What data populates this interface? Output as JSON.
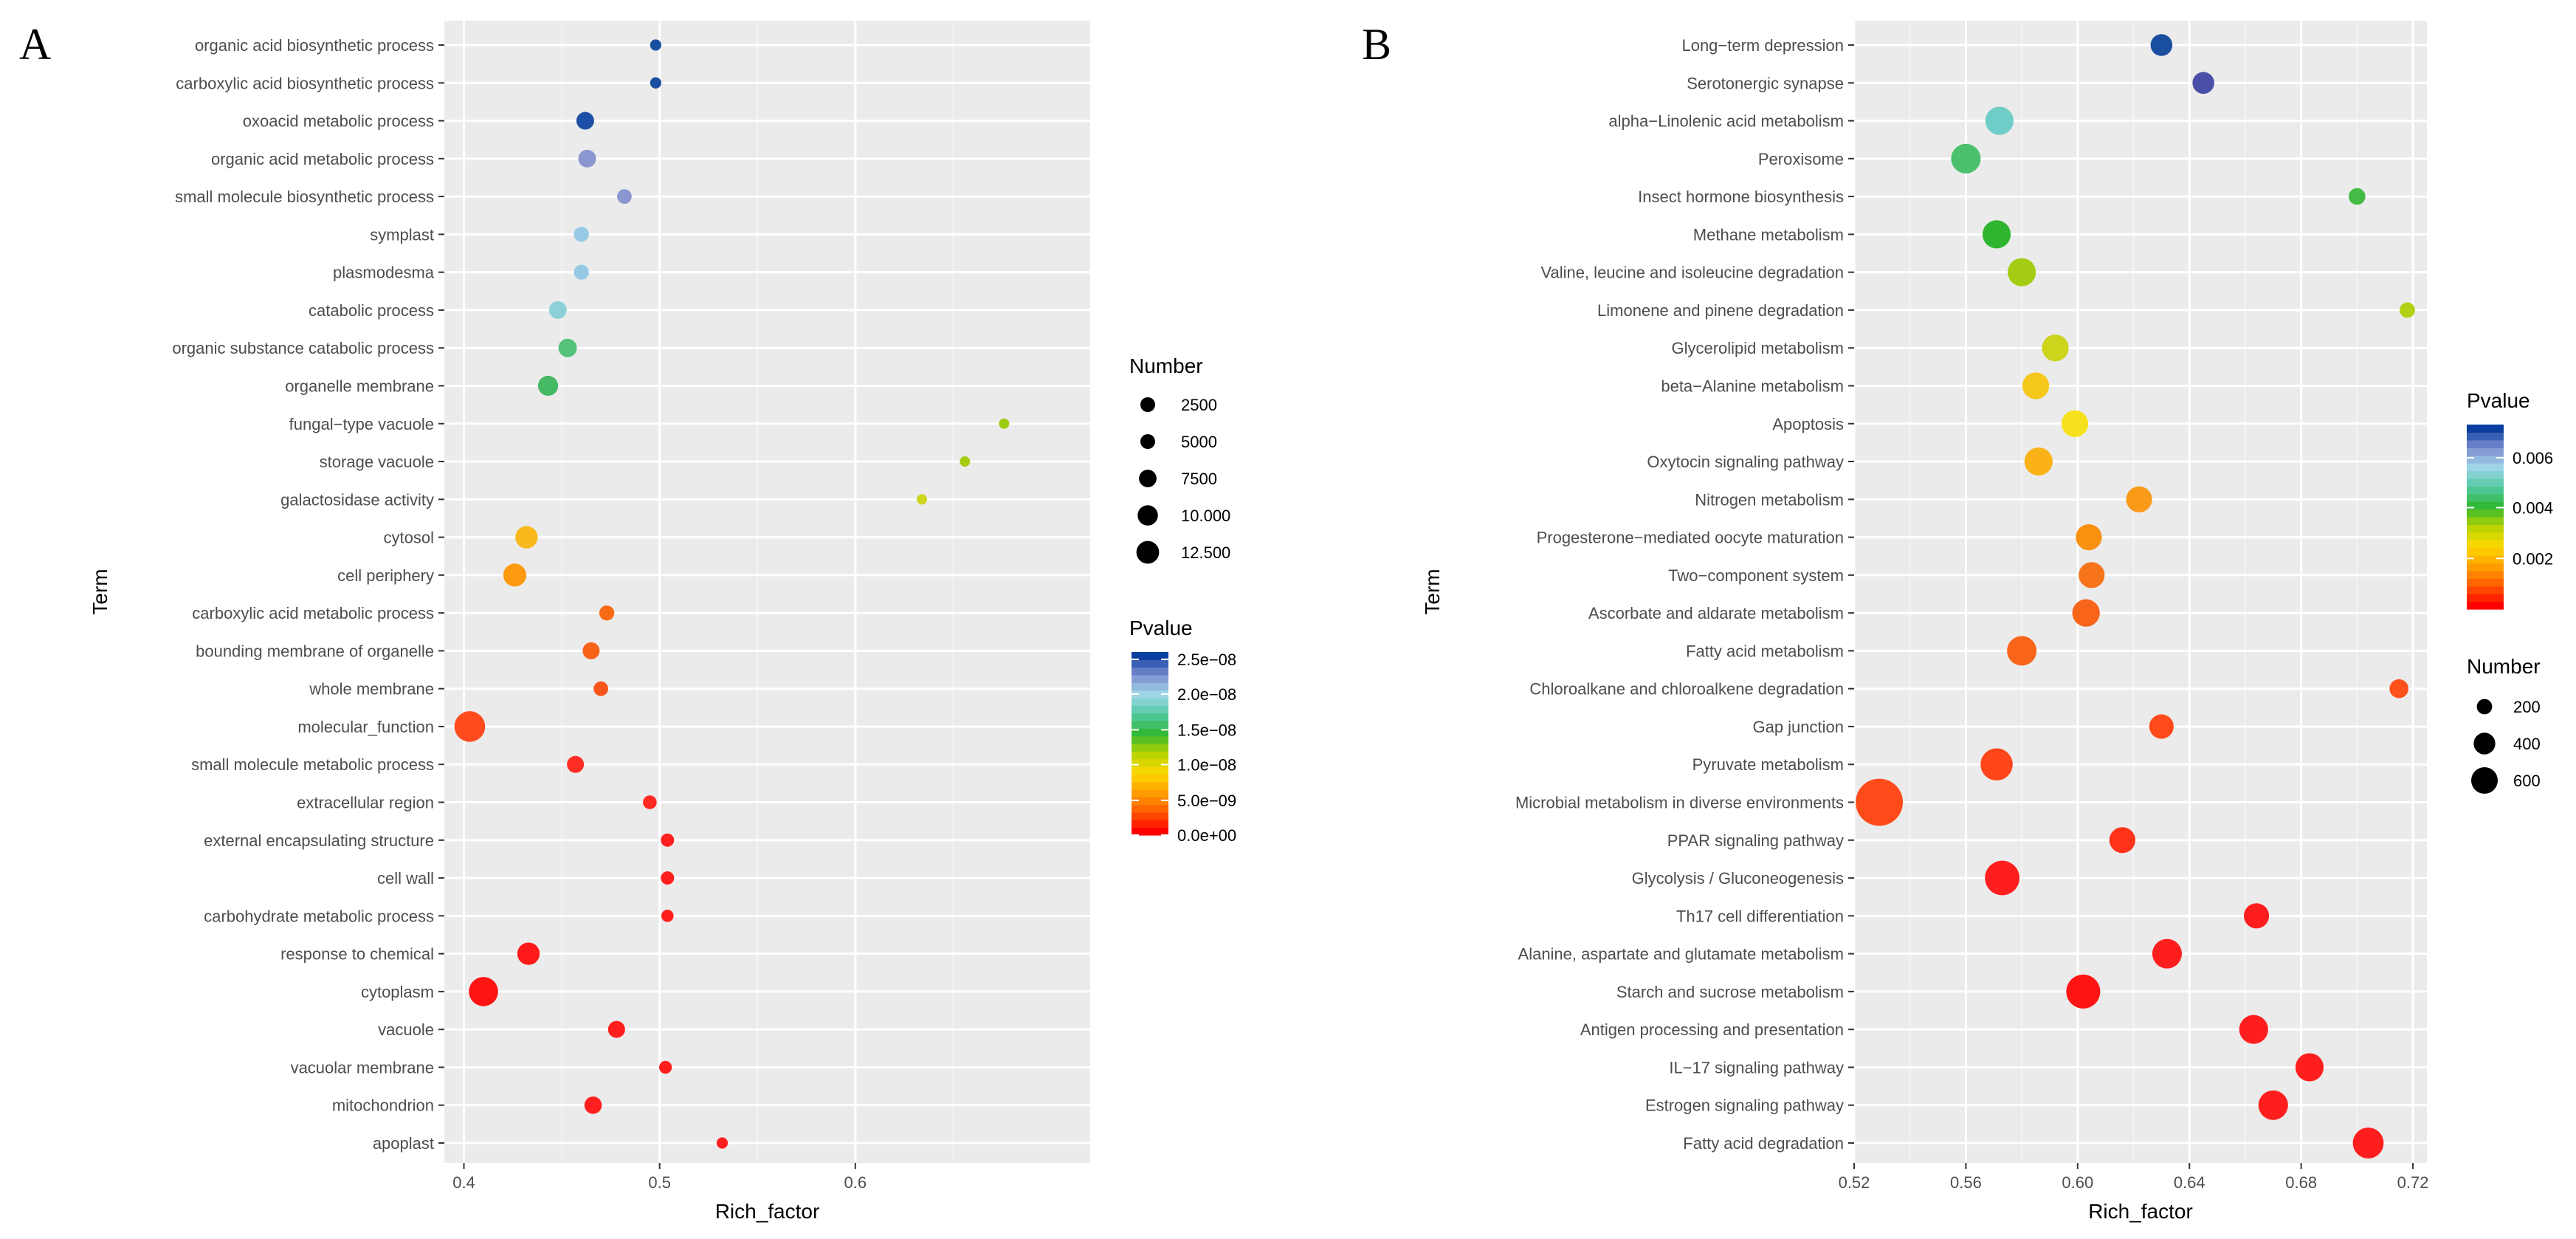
{
  "chart_data": [
    {
      "type": "scatter",
      "panel_label": "A",
      "xlabel": "Rich_factor",
      "ylabel": "Term",
      "xlim": [
        0.39,
        0.72
      ],
      "xticks": [
        0.4,
        0.5,
        0.6
      ],
      "xtick_labels": [
        "0.4",
        "0.5",
        "0.6"
      ],
      "grid": true,
      "categories": [
        "organic acid biosynthetic process",
        "carboxylic acid biosynthetic process",
        "oxoacid metabolic process",
        "organic acid metabolic process",
        "small molecule biosynthetic process",
        "symplast",
        "plasmodesma",
        "catabolic process",
        "organic substance catabolic process",
        "organelle membrane",
        "fungal−type vacuole",
        "storage vacuole",
        "galactosidase activity",
        "cytosol",
        "cell periphery",
        "carboxylic acid metabolic process",
        "bounding membrane of organelle",
        "whole membrane",
        "molecular_function",
        "small molecule metabolic process",
        "extracellular region",
        "external encapsulating structure",
        "cell wall",
        "carbohydrate metabolic process",
        "response to chemical",
        "cytoplasm",
        "vacuole",
        "vacuolar membrane",
        "mitochondrion",
        "apoplast"
      ],
      "points": [
        {
          "x": 0.498,
          "number": 1000,
          "color": "#1a4fa0"
        },
        {
          "x": 0.498,
          "number": 1000,
          "color": "#1a4fa0"
        },
        {
          "x": 0.462,
          "number": 2500,
          "color": "#1e4fa8"
        },
        {
          "x": 0.463,
          "number": 2500,
          "color": "#8a96d0"
        },
        {
          "x": 0.482,
          "number": 1700,
          "color": "#8a96d0"
        },
        {
          "x": 0.46,
          "number": 1800,
          "color": "#96c9e4"
        },
        {
          "x": 0.46,
          "number": 1800,
          "color": "#96c9e4"
        },
        {
          "x": 0.448,
          "number": 2500,
          "color": "#8ed0d8"
        },
        {
          "x": 0.453,
          "number": 2700,
          "color": "#54c27a"
        },
        {
          "x": 0.443,
          "number": 3200,
          "color": "#45b964"
        },
        {
          "x": 0.676,
          "number": 500,
          "color": "#9ccc14"
        },
        {
          "x": 0.656,
          "number": 600,
          "color": "#a6cc10"
        },
        {
          "x": 0.634,
          "number": 600,
          "color": "#cbd61c"
        },
        {
          "x": 0.432,
          "number": 4000,
          "color": "#f9b91c"
        },
        {
          "x": 0.426,
          "number": 4200,
          "color": "#fd9a0f"
        },
        {
          "x": 0.473,
          "number": 1800,
          "color": "#f86a14"
        },
        {
          "x": 0.465,
          "number": 2300,
          "color": "#f8631a"
        },
        {
          "x": 0.47,
          "number": 1700,
          "color": "#f8551a"
        },
        {
          "x": 0.403,
          "number": 7500,
          "color": "#ff4b1e"
        },
        {
          "x": 0.457,
          "number": 2300,
          "color": "#ff2d22"
        },
        {
          "x": 0.495,
          "number": 1500,
          "color": "#ff2a22"
        },
        {
          "x": 0.504,
          "number": 1400,
          "color": "#ff1e1e"
        },
        {
          "x": 0.504,
          "number": 1400,
          "color": "#ff1e1e"
        },
        {
          "x": 0.504,
          "number": 1200,
          "color": "#ff1e1e"
        },
        {
          "x": 0.433,
          "number": 4000,
          "color": "#ff1a1a"
        },
        {
          "x": 0.41,
          "number": 6800,
          "color": "#ff1414"
        },
        {
          "x": 0.478,
          "number": 2300,
          "color": "#ff1e1e"
        },
        {
          "x": 0.503,
          "number": 1300,
          "color": "#ff1e1e"
        },
        {
          "x": 0.466,
          "number": 2400,
          "color": "#ff1e1e"
        },
        {
          "x": 0.532,
          "number": 1000,
          "color": "#ff1e1e"
        }
      ],
      "size_legend": {
        "title": "Number",
        "items": [
          {
            "label": "2500",
            "value": 2500
          },
          {
            "label": "5000",
            "value": 5000
          },
          {
            "label": "7500",
            "value": 7500
          },
          {
            "label": "10.000",
            "value": 10000
          },
          {
            "label": "12.500",
            "value": 12500
          }
        ]
      },
      "color_legend": {
        "title": "Pvalue",
        "ticks": [
          {
            "label": "2.5e−08",
            "frac": 0.96
          },
          {
            "label": "2.0e−08",
            "frac": 0.77
          },
          {
            "label": "1.5e−08",
            "frac": 0.575
          },
          {
            "label": "1.0e−08",
            "frac": 0.385
          },
          {
            "label": "5.0e−09",
            "frac": 0.19
          },
          {
            "label": "0.0e+00",
            "frac": 0.0
          }
        ],
        "gradient": [
          "#ff0000",
          "#ff5a00",
          "#ffa000",
          "#ffd800",
          "#b8d400",
          "#30b830",
          "#50c8a0",
          "#9fd8e8",
          "#8090d0",
          "#0a3fa0"
        ]
      }
    },
    {
      "type": "scatter",
      "panel_label": "B",
      "xlabel": "Rich_factor",
      "ylabel": "Term",
      "xlim": [
        0.52,
        0.725
      ],
      "xticks": [
        0.52,
        0.56,
        0.6,
        0.64,
        0.68,
        0.72
      ],
      "xtick_labels": [
        "0.52",
        "0.56",
        "0.60",
        "0.64",
        "0.68",
        "0.72"
      ],
      "grid": true,
      "categories": [
        "Long−term depression",
        "Serotonergic synapse",
        "alpha−Linolenic acid metabolism",
        "Peroxisome",
        "Insect hormone biosynthesis",
        "Methane metabolism",
        "Valine, leucine and isoleucine degradation",
        "Limonene and pinene degradation",
        "Glycerolipid metabolism",
        "beta−Alanine metabolism",
        "Apoptosis",
        "Oxytocin signaling pathway",
        "Nitrogen metabolism",
        "Progesterone−mediated oocyte maturation",
        "Two−component system",
        "Ascorbate and aldarate metabolism",
        "Fatty acid metabolism",
        "Chloroalkane and chloroalkene degradation",
        "Gap junction",
        "Pyruvate metabolism",
        "Microbial metabolism in diverse environments",
        "PPAR signaling pathway",
        "Glycolysis / Gluconeogenesis",
        "Th17 cell differentiation",
        "Alanine, aspartate and glutamate metabolism",
        "Starch and sucrose metabolism",
        "Antigen processing and presentation",
        "IL−17 signaling pathway",
        "Estrogen signaling pathway",
        "Fatty acid degradation"
      ],
      "points": [
        {
          "x": 0.63,
          "number": 120,
          "color": "#1a4fa0"
        },
        {
          "x": 0.645,
          "number": 120,
          "color": "#4a4fa8"
        },
        {
          "x": 0.572,
          "number": 200,
          "color": "#6fcdc8"
        },
        {
          "x": 0.56,
          "number": 220,
          "color": "#4cc06c"
        },
        {
          "x": 0.7,
          "number": 70,
          "color": "#44bb44"
        },
        {
          "x": 0.571,
          "number": 200,
          "color": "#30b530"
        },
        {
          "x": 0.58,
          "number": 200,
          "color": "#a4cc12"
        },
        {
          "x": 0.718,
          "number": 60,
          "color": "#b4d014"
        },
        {
          "x": 0.592,
          "number": 180,
          "color": "#ccd41c"
        },
        {
          "x": 0.585,
          "number": 180,
          "color": "#f6c81c"
        },
        {
          "x": 0.599,
          "number": 180,
          "color": "#f6e21c"
        },
        {
          "x": 0.586,
          "number": 200,
          "color": "#fbb219"
        },
        {
          "x": 0.622,
          "number": 170,
          "color": "#f99a19"
        },
        {
          "x": 0.604,
          "number": 170,
          "color": "#f9900f"
        },
        {
          "x": 0.605,
          "number": 170,
          "color": "#f8741a"
        },
        {
          "x": 0.603,
          "number": 190,
          "color": "#f8641a"
        },
        {
          "x": 0.58,
          "number": 220,
          "color": "#f8641a"
        },
        {
          "x": 0.715,
          "number": 90,
          "color": "#ff521a"
        },
        {
          "x": 0.63,
          "number": 150,
          "color": "#ff4a1a"
        },
        {
          "x": 0.571,
          "number": 260,
          "color": "#ff461a"
        },
        {
          "x": 0.529,
          "number": 560,
          "color": "#ff4a1a"
        },
        {
          "x": 0.616,
          "number": 170,
          "color": "#ff321a"
        },
        {
          "x": 0.573,
          "number": 300,
          "color": "#ff1e1e"
        },
        {
          "x": 0.664,
          "number": 160,
          "color": "#ff1e1e"
        },
        {
          "x": 0.632,
          "number": 220,
          "color": "#ff1e1e"
        },
        {
          "x": 0.602,
          "number": 290,
          "color": "#ff1414"
        },
        {
          "x": 0.663,
          "number": 210,
          "color": "#ff1e1e"
        },
        {
          "x": 0.683,
          "number": 200,
          "color": "#ff1e1e"
        },
        {
          "x": 0.67,
          "number": 220,
          "color": "#ff1e1e"
        },
        {
          "x": 0.704,
          "number": 240,
          "color": "#ff1e1e"
        }
      ],
      "size_legend": {
        "title": "Number",
        "items": [
          {
            "label": "200",
            "value": 200
          },
          {
            "label": "400",
            "value": 400
          },
          {
            "label": "600",
            "value": 600
          }
        ]
      },
      "color_legend": {
        "title": "Pvalue",
        "ticks": [
          {
            "label": "0.006",
            "frac": 0.82
          },
          {
            "label": "0.004",
            "frac": 0.55
          },
          {
            "label": "0.002",
            "frac": 0.275
          }
        ],
        "gradient": [
          "#ff0000",
          "#ff5a00",
          "#ffa000",
          "#ffd800",
          "#b8d400",
          "#30b830",
          "#50c8a0",
          "#9fd8e8",
          "#8090d0",
          "#0a3fa0"
        ]
      }
    }
  ]
}
